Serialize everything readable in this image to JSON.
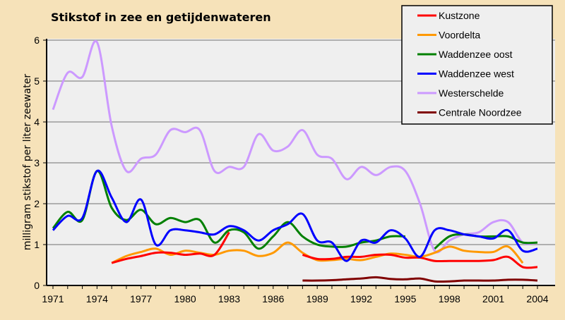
{
  "chart_data": {
    "type": "line",
    "title": "Stikstof in zee en getijdenwateren",
    "xlabel": "",
    "ylabel": "milligram stikstof per liter zeewater",
    "xlim": [
      1971,
      2004
    ],
    "ylim": [
      0,
      6
    ],
    "x_ticks": [
      "1971",
      "1974",
      "1977",
      "1980",
      "1983",
      "1986",
      "1989",
      "1992",
      "1995",
      "1998",
      "2001",
      "2004"
    ],
    "y_ticks": [
      "0",
      "1",
      "2",
      "3",
      "4",
      "5",
      "6"
    ],
    "grid": "horizontal",
    "legend_position": "top-right",
    "x": [
      1971,
      1972,
      1973,
      1974,
      1975,
      1976,
      1977,
      1978,
      1979,
      1980,
      1981,
      1982,
      1983,
      1984,
      1985,
      1986,
      1987,
      1988,
      1989,
      1990,
      1991,
      1992,
      1993,
      1994,
      1995,
      1996,
      1997,
      1998,
      1999,
      2000,
      2001,
      2002,
      2003,
      2004
    ],
    "series": [
      {
        "name": "Kustzone",
        "color": "#ff0000",
        "values": [
          null,
          null,
          null,
          null,
          0.55,
          0.65,
          0.72,
          0.8,
          0.8,
          0.75,
          0.78,
          0.75,
          1.3,
          null,
          null,
          null,
          null,
          0.75,
          0.65,
          0.65,
          0.7,
          0.7,
          0.75,
          0.75,
          0.68,
          0.68,
          0.6,
          0.6,
          0.6,
          0.6,
          0.62,
          0.7,
          0.45,
          0.45
        ]
      },
      {
        "name": "Voordelta",
        "color": "#ff9900",
        "values": [
          null,
          null,
          null,
          null,
          0.55,
          0.72,
          0.82,
          0.9,
          0.75,
          0.85,
          0.8,
          0.75,
          0.85,
          0.85,
          0.72,
          0.8,
          1.05,
          0.8,
          0.62,
          0.62,
          0.65,
          0.62,
          0.7,
          0.78,
          0.75,
          0.7,
          0.8,
          0.95,
          0.85,
          0.82,
          0.82,
          0.95,
          0.55,
          null
        ]
      },
      {
        "name": "Waddenzee oost",
        "color": "#008000",
        "values": [
          1.4,
          1.8,
          1.6,
          2.8,
          1.9,
          1.6,
          1.85,
          1.5,
          1.65,
          1.55,
          1.6,
          1.05,
          1.35,
          1.3,
          0.9,
          1.2,
          1.55,
          1.2,
          1.0,
          0.95,
          0.95,
          1.05,
          1.1,
          1.2,
          1.2,
          null,
          0.9,
          1.2,
          1.25,
          1.2,
          1.2,
          1.2,
          1.05,
          1.05
        ]
      },
      {
        "name": "Waddenzee west",
        "color": "#0000ff",
        "values": [
          1.35,
          1.7,
          1.65,
          2.8,
          2.15,
          1.55,
          2.1,
          1.0,
          1.35,
          1.35,
          1.3,
          1.25,
          1.45,
          1.35,
          1.1,
          1.35,
          1.5,
          1.75,
          1.1,
          1.05,
          0.6,
          1.1,
          1.05,
          1.35,
          1.15,
          0.7,
          1.35,
          1.35,
          1.25,
          1.2,
          1.15,
          1.35,
          0.85,
          0.9
        ]
      },
      {
        "name": "Westerschelde",
        "color": "#cc99ff",
        "values": [
          4.3,
          5.2,
          5.1,
          5.95,
          3.9,
          2.8,
          3.1,
          3.2,
          3.8,
          3.75,
          3.8,
          2.8,
          2.9,
          2.9,
          3.7,
          3.3,
          3.4,
          3.8,
          3.2,
          3.1,
          2.6,
          2.9,
          2.7,
          2.9,
          2.8,
          2.0,
          0.85,
          1.1,
          1.25,
          1.3,
          1.55,
          1.55,
          1.05,
          1.05
        ]
      },
      {
        "name": "Centrale Noordzee",
        "color": "#800000",
        "values": [
          null,
          null,
          null,
          null,
          null,
          null,
          null,
          null,
          null,
          null,
          null,
          null,
          null,
          null,
          null,
          null,
          null,
          0.12,
          0.12,
          0.13,
          0.15,
          0.17,
          0.2,
          0.16,
          0.15,
          0.17,
          0.1,
          0.1,
          0.12,
          0.12,
          0.12,
          0.14,
          0.14,
          0.12
        ]
      }
    ]
  }
}
